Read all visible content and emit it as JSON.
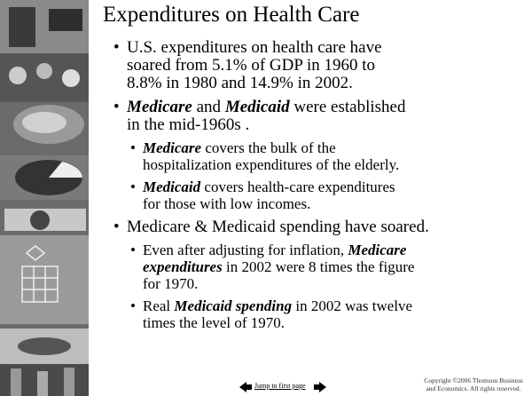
{
  "title": "Expenditures on Health Care",
  "bullets": [
    {
      "level": 1,
      "lines": [
        [
          {
            "text": "U.S. expenditures on health care have",
            "emph": false
          }
        ],
        [
          {
            "text": "soared from 5.1% of GDP in 1960 to",
            "emph": false
          }
        ],
        [
          {
            "text": "8.8% in 1980 and 14.9% in 2002.",
            "emph": false
          }
        ]
      ]
    },
    {
      "level": 1,
      "lines": [
        [
          {
            "text": "Medicare",
            "emph": true
          },
          {
            "text": " and ",
            "emph": false
          },
          {
            "text": "Medicaid",
            "emph": true
          },
          {
            "text": " were established",
            "emph": false
          }
        ],
        [
          {
            "text": "in the mid-1960s .",
            "emph": false
          }
        ]
      ]
    },
    {
      "level": 2,
      "lines": [
        [
          {
            "text": "Medicare",
            "emph": true
          },
          {
            "text": " covers the bulk of the",
            "emph": false
          }
        ],
        [
          {
            "text": "hospitalization expenditures of the elderly.",
            "emph": false
          }
        ]
      ]
    },
    {
      "level": 2,
      "lines": [
        [
          {
            "text": "Medicaid",
            "emph": true
          },
          {
            "text": " covers health-care expenditures",
            "emph": false
          }
        ],
        [
          {
            "text": "for those with low incomes.",
            "emph": false
          }
        ]
      ]
    },
    {
      "level": 1,
      "lines": [
        [
          {
            "text": "Medicare & Medicaid spending have soared.",
            "emph": false
          }
        ]
      ]
    },
    {
      "level": 2,
      "lines": [
        [
          {
            "text": "Even after adjusting for inflation, ",
            "emph": false
          },
          {
            "text": "Medicare",
            "emph": true
          }
        ],
        [
          {
            "text": "expenditures",
            "emph": true
          },
          {
            "text": " in 2002 were 8 times the figure",
            "emph": false
          }
        ],
        [
          {
            "text": "for 1970.",
            "emph": false
          }
        ]
      ]
    },
    {
      "level": 2,
      "lines": [
        [
          {
            "text": "Real ",
            "emph": false
          },
          {
            "text": "Medicaid spending",
            "emph": true
          },
          {
            "text": " in 2002 was twelve",
            "emph": false
          }
        ],
        [
          {
            "text": "times the level of 1970.",
            "emph": false
          }
        ]
      ]
    }
  ],
  "footer": {
    "link": "Jump to first page",
    "copyright": "Copyright ©2006  Thomson Business and Economics. All rights reserved."
  }
}
